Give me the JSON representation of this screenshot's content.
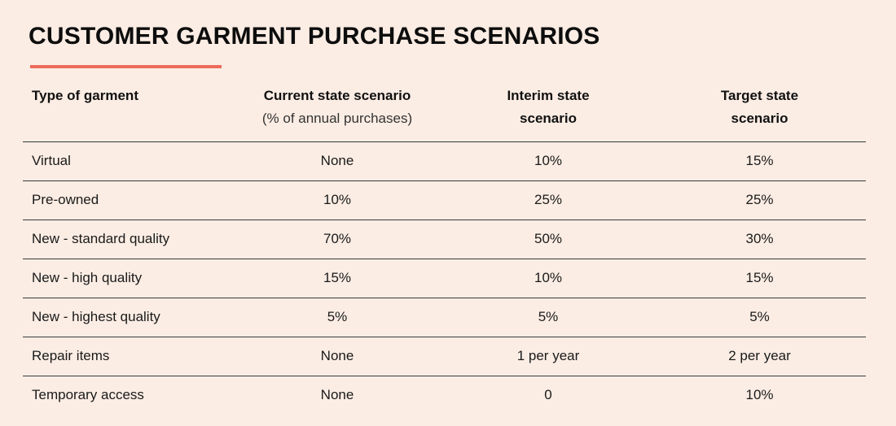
{
  "title": "CUSTOMER GARMENT PURCHASE SCENARIOS",
  "accent_color": "#ee6b5b",
  "background_color": "#fbede4",
  "table": {
    "headers": [
      {
        "main": "Type of garment",
        "sub": ""
      },
      {
        "main": "Current state scenario",
        "sub": "(% of annual purchases)"
      },
      {
        "main": "Interim state",
        "sub": "scenario"
      },
      {
        "main": "Target state",
        "sub": "scenario"
      }
    ],
    "rows": [
      [
        "Virtual",
        "None",
        "10%",
        "15%"
      ],
      [
        "Pre-owned",
        "10%",
        "25%",
        "25%"
      ],
      [
        "New - standard quality",
        "70%",
        "50%",
        "30%"
      ],
      [
        "New - high quality",
        "15%",
        "10%",
        "15%"
      ],
      [
        "New - highest quality",
        "5%",
        "5%",
        "5%"
      ],
      [
        "Repair items",
        "None",
        "1 per year",
        "2 per year"
      ],
      [
        "Temporary access",
        "None",
        "0",
        "10%"
      ]
    ]
  }
}
